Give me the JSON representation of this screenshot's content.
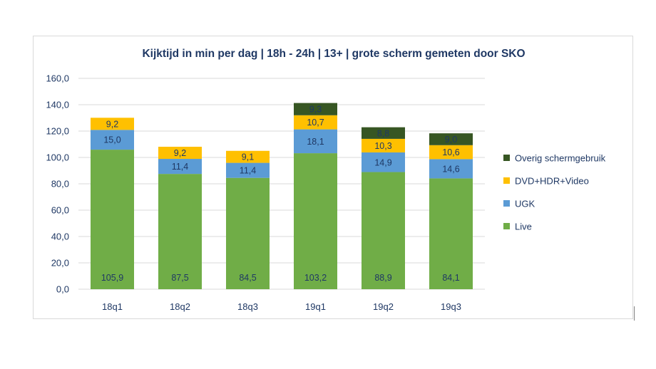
{
  "chart_data": {
    "type": "bar",
    "stacked": true,
    "title": "Kijktijd in min per dag | 18h - 24h | 13+ | grote scherm gemeten door SKO",
    "categories": [
      "18q1",
      "18q2",
      "18q3",
      "19q1",
      "19q2",
      "19q3"
    ],
    "ylim": [
      0,
      160
    ],
    "yticks": [
      "0,0",
      "20,0",
      "40,0",
      "60,0",
      "80,0",
      "100,0",
      "120,0",
      "140,0",
      "160,0"
    ],
    "grid": true,
    "legend_position": "right",
    "series": [
      {
        "name": "Live",
        "color": "#70ad47",
        "values": [
          105.9,
          87.5,
          84.5,
          103.2,
          88.9,
          84.1
        ],
        "labels": [
          "105,9",
          "87,5",
          "84,5",
          "103,2",
          "88,9",
          "84,1"
        ]
      },
      {
        "name": "UGK",
        "color": "#5b9bd5",
        "values": [
          15.0,
          11.4,
          11.4,
          18.1,
          14.9,
          14.6
        ],
        "labels": [
          "15,0",
          "11,4",
          "11,4",
          "18,1",
          "14,9",
          "14,6"
        ]
      },
      {
        "name": "DVD+HDR+Video",
        "color": "#ffc000",
        "values": [
          9.2,
          9.2,
          9.1,
          10.7,
          10.3,
          10.6
        ],
        "labels": [
          "9,2",
          "9,2",
          "9,1",
          "10,7",
          "10,3",
          "10,6"
        ]
      },
      {
        "name": "Overig schermgebruik",
        "color": "#375623",
        "values": [
          null,
          null,
          null,
          9.3,
          8.8,
          9.0
        ],
        "labels": [
          "",
          "",
          "",
          "9,3",
          "8,8",
          "9,0"
        ]
      }
    ]
  }
}
